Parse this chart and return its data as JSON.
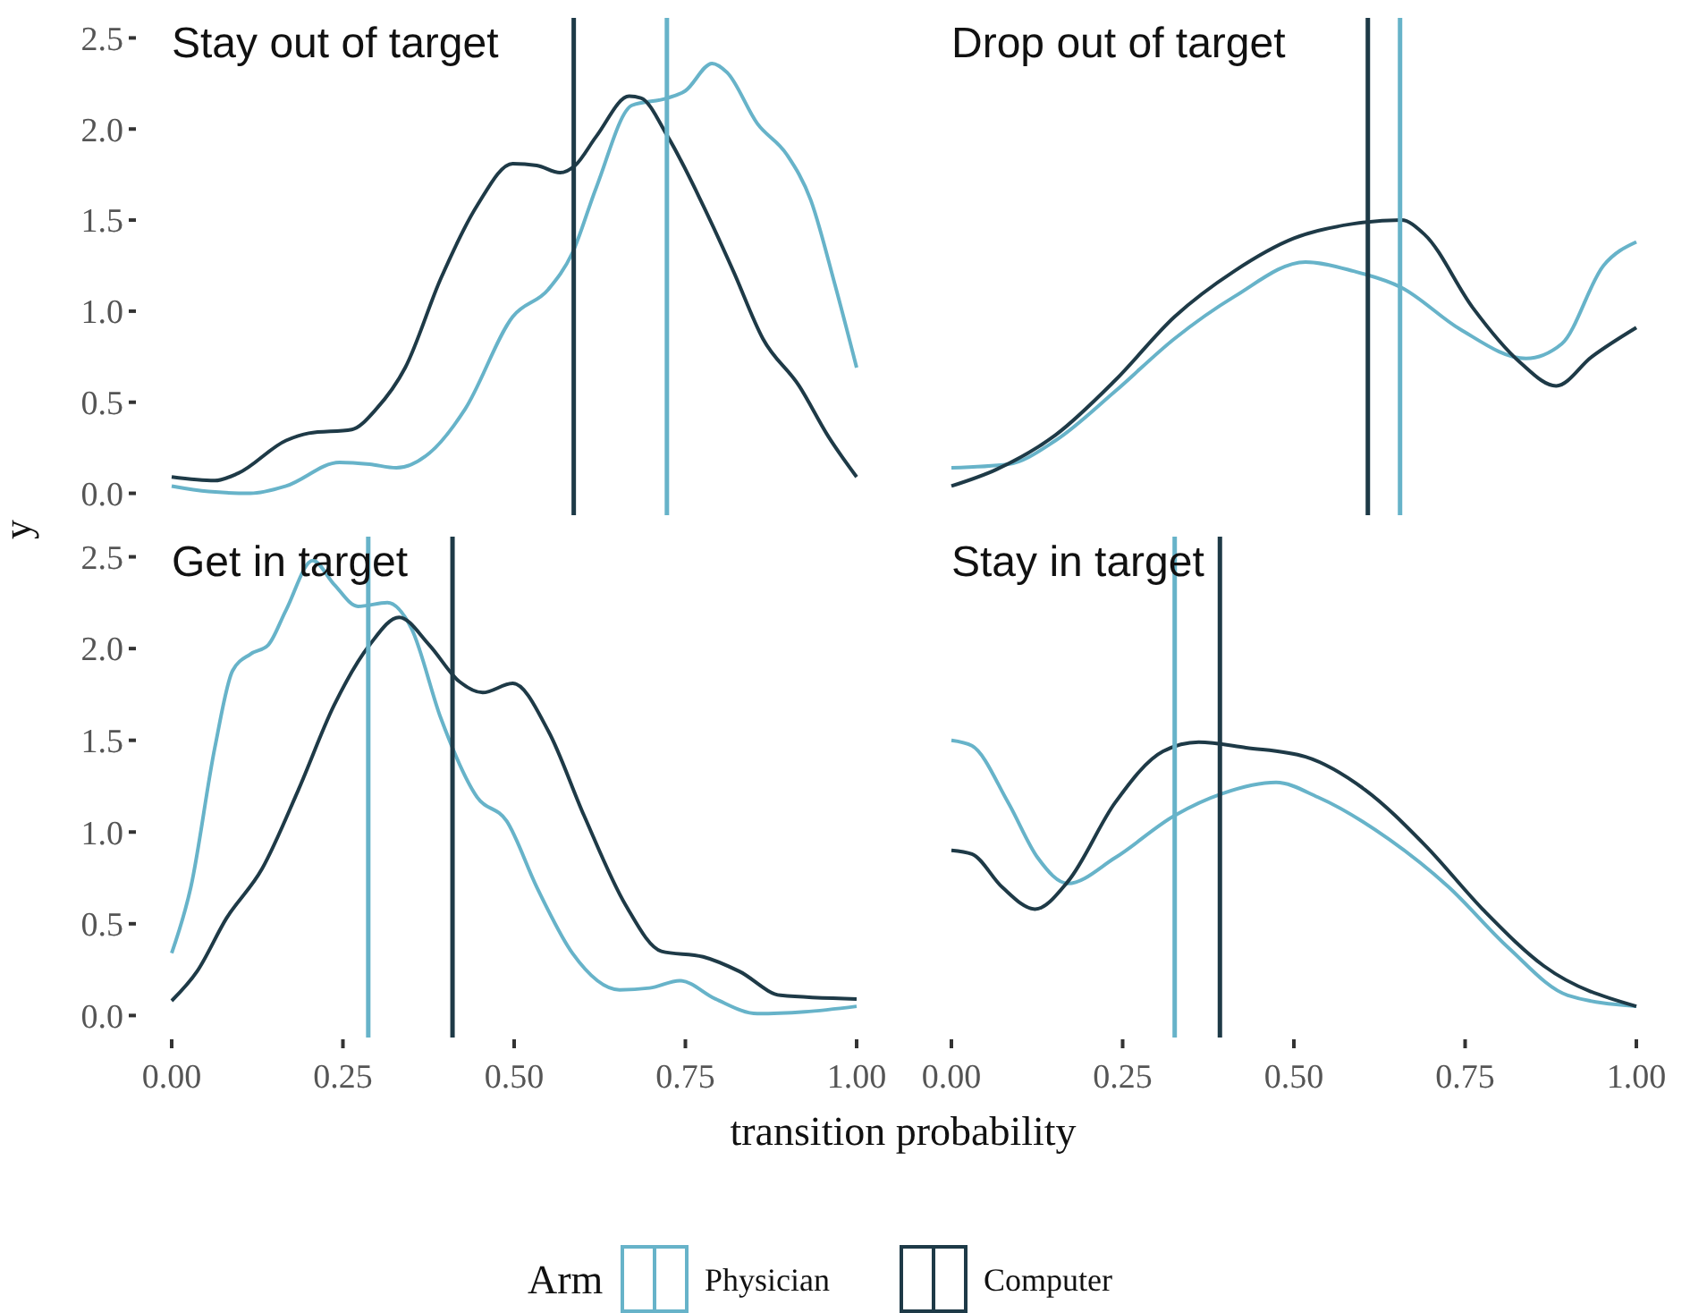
{
  "chart_data": [
    {
      "type": "line",
      "title": "Stay out of target",
      "xlabel": "transition probability",
      "ylabel": "y",
      "legend_title": "Arm",
      "legend": "bottom",
      "tick_labels": "y",
      "xlim": [
        0,
        1
      ],
      "ylim": [
        -0.12,
        2.61
      ],
      "yticks": [
        {
          "value": 0,
          "label": "0.0"
        },
        {
          "value": 0.5,
          "label": "0.5"
        },
        {
          "value": 1,
          "label": "1.0"
        },
        {
          "value": 1.5,
          "label": "1.5"
        },
        {
          "value": 2,
          "label": "2.0"
        },
        {
          "value": 2.5,
          "label": "2.5"
        }
      ],
      "series": [
        {
          "name": "Physician",
          "color": "#67b3c9",
          "x": [
            0,
            0.054,
            0.115,
            0.167,
            0.245,
            0.289,
            0.328,
            0.376,
            0.428,
            0.498,
            0.55,
            0.585,
            0.62,
            0.672,
            0.724,
            0.75,
            0.789,
            0.811,
            0.855,
            0.898,
            0.933,
            0.968,
            1
          ],
          "values": [
            0.04,
            0.01,
            0.0,
            0.04,
            0.17,
            0.16,
            0.14,
            0.22,
            0.46,
            0.97,
            1.12,
            1.32,
            1.68,
            2.13,
            2.17,
            2.21,
            2.36,
            2.31,
            2.03,
            1.86,
            1.61,
            1.15,
            0.69
          ]
        },
        {
          "name": "Computer",
          "color": "#1e3a47",
          "x": [
            0,
            0.063,
            0.097,
            0.167,
            0.2,
            0.263,
            0.298,
            0.341,
            0.393,
            0.446,
            0.498,
            0.533,
            0.567,
            0.589,
            0.62,
            0.668,
            0.685,
            0.724,
            0.776,
            0.82,
            0.863,
            0.916,
            0.959,
            1
          ],
          "values": [
            0.09,
            0.07,
            0.11,
            0.29,
            0.33,
            0.35,
            0.46,
            0.69,
            1.18,
            1.58,
            1.81,
            1.8,
            1.76,
            1.8,
            1.96,
            2.18,
            2.17,
            1.96,
            1.58,
            1.22,
            0.85,
            0.59,
            0.31,
            0.09
          ]
        }
      ],
      "ref_lines": [
        {
          "axis": "x",
          "value": 0.587,
          "color": "#1e3a47"
        },
        {
          "axis": "x",
          "value": 0.723,
          "color": "#67b3c9"
        }
      ]
    },
    {
      "type": "line",
      "title": "Drop out of target",
      "tick_labels": false,
      "xlim": [
        0,
        1
      ],
      "ylim": [
        -0.12,
        2.61
      ],
      "series": [
        {
          "color": "#67b3c9",
          "x": [
            0,
            0.083,
            0.152,
            0.239,
            0.326,
            0.413,
            0.517,
            0.587,
            0.657,
            0.743,
            0.839,
            0.891,
            0.952,
            1
          ],
          "values": [
            0.14,
            0.16,
            0.29,
            0.56,
            0.85,
            1.08,
            1.27,
            1.22,
            1.13,
            0.9,
            0.74,
            0.82,
            1.25,
            1.38
          ]
        },
        {
          "color": "#1e3a47",
          "x": [
            0,
            0.065,
            0.152,
            0.239,
            0.326,
            0.413,
            0.5,
            0.587,
            0.657,
            0.691,
            0.761,
            0.83,
            0.883,
            0.935,
            1
          ],
          "values": [
            0.04,
            0.13,
            0.32,
            0.62,
            0.97,
            1.22,
            1.4,
            1.48,
            1.5,
            1.42,
            1.02,
            0.72,
            0.59,
            0.75,
            0.91
          ]
        }
      ],
      "ref_lines": [
        {
          "axis": "x",
          "value": 0.608,
          "color": "#1e3a47"
        },
        {
          "axis": "x",
          "value": 0.655,
          "color": "#67b3c9"
        }
      ]
    },
    {
      "type": "line",
      "title": "Get in target",
      "xlim": [
        0,
        1
      ],
      "ylim": [
        -0.12,
        2.61
      ],
      "xticks": [
        {
          "value": 0,
          "label": "0.00"
        },
        {
          "value": 0.25,
          "label": "0.25"
        },
        {
          "value": 0.5,
          "label": "0.50"
        },
        {
          "value": 0.75,
          "label": "0.75"
        },
        {
          "value": 1,
          "label": "1.00"
        }
      ],
      "yticks": [
        {
          "value": 0,
          "label": "0.0"
        },
        {
          "value": 0.5,
          "label": "0.5"
        },
        {
          "value": 1,
          "label": "1.0"
        },
        {
          "value": 1.5,
          "label": "1.5"
        },
        {
          "value": 2,
          "label": "2.0"
        },
        {
          "value": 2.5,
          "label": "2.5"
        }
      ],
      "series": [
        {
          "color": "#67b3c9",
          "x": [
            0,
            0.028,
            0.063,
            0.089,
            0.115,
            0.141,
            0.167,
            0.206,
            0.237,
            0.272,
            0.315,
            0.35,
            0.393,
            0.446,
            0.489,
            0.533,
            0.585,
            0.654,
            0.698,
            0.742,
            0.794,
            0.855,
            0.924,
            1
          ],
          "values": [
            0.34,
            0.7,
            1.46,
            1.88,
            1.97,
            2.02,
            2.21,
            2.48,
            2.35,
            2.23,
            2.25,
            2.11,
            1.62,
            1.19,
            1.06,
            0.7,
            0.34,
            0.14,
            0.15,
            0.19,
            0.09,
            0.01,
            0.02,
            0.05
          ]
        },
        {
          "color": "#1e3a47",
          "x": [
            0,
            0.037,
            0.08,
            0.132,
            0.185,
            0.237,
            0.289,
            0.332,
            0.376,
            0.42,
            0.454,
            0.498,
            0.55,
            0.602,
            0.663,
            0.715,
            0.776,
            0.829,
            0.889,
            1
          ],
          "values": [
            0.08,
            0.24,
            0.53,
            0.8,
            1.23,
            1.69,
            2.02,
            2.17,
            2.02,
            1.82,
            1.76,
            1.81,
            1.55,
            1.09,
            0.6,
            0.35,
            0.32,
            0.24,
            0.11,
            0.09
          ]
        }
      ],
      "ref_lines": [
        {
          "axis": "x",
          "value": 0.287,
          "color": "#67b3c9"
        },
        {
          "axis": "x",
          "value": 0.41,
          "color": "#1e3a47"
        }
      ]
    },
    {
      "type": "line",
      "title": "Stay in target",
      "tick_labels": "x",
      "xlim": [
        0,
        1
      ],
      "ylim": [
        -0.12,
        2.61
      ],
      "xticks": [
        {
          "value": 0,
          "label": "0.00"
        },
        {
          "value": 0.25,
          "label": "0.25"
        },
        {
          "value": 0.5,
          "label": "0.50"
        },
        {
          "value": 0.75,
          "label": "0.75"
        },
        {
          "value": 1,
          "label": "1.00"
        }
      ],
      "series": [
        {
          "color": "#67b3c9",
          "x": [
            0,
            0.03,
            0.083,
            0.126,
            0.17,
            0.239,
            0.326,
            0.396,
            0.474,
            0.535,
            0.639,
            0.726,
            0.813,
            0.9,
            1
          ],
          "values": [
            1.5,
            1.47,
            1.16,
            0.86,
            0.72,
            0.86,
            1.09,
            1.21,
            1.27,
            1.19,
            0.96,
            0.7,
            0.37,
            0.11,
            0.05
          ]
        },
        {
          "color": "#1e3a47",
          "x": [
            0,
            0.03,
            0.074,
            0.122,
            0.17,
            0.239,
            0.309,
            0.361,
            0.43,
            0.517,
            0.604,
            0.691,
            0.778,
            0.865,
            1
          ],
          "values": [
            0.9,
            0.88,
            0.7,
            0.58,
            0.73,
            1.16,
            1.44,
            1.49,
            1.46,
            1.41,
            1.23,
            0.93,
            0.57,
            0.27,
            0.05
          ]
        }
      ],
      "ref_lines": [
        {
          "axis": "x",
          "value": 0.326,
          "color": "#67b3c9"
        },
        {
          "axis": "x",
          "value": 0.392,
          "color": "#1e3a47"
        }
      ]
    }
  ]
}
